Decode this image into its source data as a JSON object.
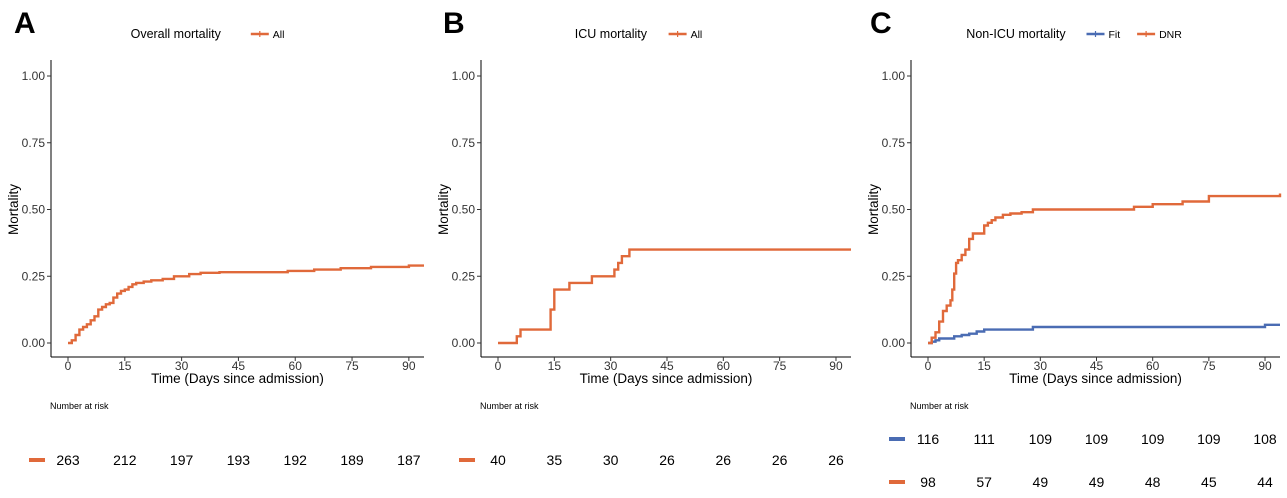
{
  "panels": [
    {
      "letter": "A",
      "legend_title": "Overall mortality",
      "xlabel": "Time (Days since admission)",
      "ylabel": "Mortality",
      "risk_title": "Number at risk",
      "series_names": [
        "All"
      ]
    },
    {
      "letter": "B",
      "legend_title": "ICU mortality",
      "xlabel": "Time (Days since admission)",
      "ylabel": "Mortality",
      "risk_title": "Number at risk",
      "series_names": [
        "All"
      ]
    },
    {
      "letter": "C",
      "legend_title": "Non-ICU mortality",
      "xlabel": "Time (Days since admission)",
      "ylabel": "Mortality",
      "risk_title": "Number at risk",
      "series_names": [
        "Fit",
        "DNR"
      ]
    }
  ],
  "chart_data": [
    {
      "type": "line",
      "step": true,
      "title": "",
      "xlabel": "Time (Days since admission)",
      "ylabel": "Mortality",
      "xlim": [
        0,
        94
      ],
      "ylim": [
        0,
        1
      ],
      "xticks": [
        "0",
        "15",
        "30",
        "45",
        "60",
        "75",
        "90"
      ],
      "yticks": [
        "0.00",
        "0.25",
        "0.50",
        "0.75",
        "1.00"
      ],
      "legend": {
        "title": "Overall mortality",
        "position": "top"
      },
      "grid": false,
      "series": [
        {
          "name": "All",
          "color": "#e0693a",
          "x": [
            0,
            1,
            2,
            3,
            4,
            5,
            6,
            7,
            8,
            9,
            10,
            11,
            12,
            13,
            14,
            15,
            16,
            17,
            18,
            20,
            22,
            25,
            28,
            32,
            35,
            40,
            50,
            58,
            65,
            72,
            80,
            90,
            94
          ],
          "y": [
            0,
            0.01,
            0.03,
            0.05,
            0.06,
            0.07,
            0.085,
            0.1,
            0.125,
            0.135,
            0.145,
            0.15,
            0.17,
            0.185,
            0.195,
            0.2,
            0.21,
            0.22,
            0.225,
            0.23,
            0.235,
            0.24,
            0.25,
            0.258,
            0.263,
            0.265,
            0.265,
            0.27,
            0.275,
            0.28,
            0.285,
            0.29,
            0.29
          ]
        }
      ],
      "risk_table": {
        "times": [
          0,
          15,
          30,
          45,
          60,
          75,
          90
        ],
        "rows": [
          {
            "name": "All",
            "color": "#e0693a",
            "values": [
              263,
              212,
              197,
              193,
              192,
              189,
              187
            ]
          }
        ]
      }
    },
    {
      "type": "line",
      "step": true,
      "title": "",
      "xlabel": "Time (Days since admission)",
      "ylabel": "Mortality",
      "xlim": [
        0,
        94
      ],
      "ylim": [
        0,
        1
      ],
      "xticks": [
        "0",
        "15",
        "30",
        "45",
        "60",
        "75",
        "90"
      ],
      "yticks": [
        "0.00",
        "0.25",
        "0.50",
        "0.75",
        "1.00"
      ],
      "legend": {
        "title": "ICU mortality",
        "position": "top"
      },
      "grid": false,
      "series": [
        {
          "name": "All",
          "color": "#e0693a",
          "x": [
            0,
            5,
            6,
            14,
            15,
            16,
            19,
            25,
            31,
            32,
            33,
            35,
            94
          ],
          "y": [
            0,
            0.025,
            0.05,
            0.125,
            0.2,
            0.2,
            0.225,
            0.25,
            0.275,
            0.3,
            0.325,
            0.35,
            0.35
          ]
        }
      ],
      "risk_table": {
        "times": [
          0,
          15,
          30,
          45,
          60,
          75,
          90
        ],
        "rows": [
          {
            "name": "All",
            "color": "#e0693a",
            "values": [
              40,
              35,
              30,
              26,
              26,
              26,
              26
            ]
          }
        ]
      }
    },
    {
      "type": "line",
      "step": true,
      "title": "",
      "xlabel": "Time (Days since admission)",
      "ylabel": "Mortality",
      "xlim": [
        0,
        94
      ],
      "ylim": [
        0,
        1
      ],
      "xticks": [
        "0",
        "15",
        "30",
        "45",
        "60",
        "75",
        "90"
      ],
      "yticks": [
        "0.00",
        "0.25",
        "0.50",
        "0.75",
        "1.00"
      ],
      "legend": {
        "title": "Non-ICU mortality",
        "position": "top"
      },
      "grid": false,
      "series": [
        {
          "name": "Fit",
          "color": "#4a6cb3",
          "x": [
            0,
            1,
            2,
            3,
            7,
            9,
            11,
            13,
            15,
            28,
            90,
            94
          ],
          "y": [
            0,
            0.005,
            0.01,
            0.017,
            0.025,
            0.03,
            0.035,
            0.043,
            0.05,
            0.06,
            0.068,
            0.068
          ]
        },
        {
          "name": "DNR",
          "color": "#e0693a",
          "x": [
            0,
            1,
            2,
            3,
            4,
            5,
            6,
            6.5,
            7,
            7.5,
            8,
            9,
            10,
            11,
            12,
            15,
            16,
            17,
            18,
            20,
            22,
            25,
            28,
            55,
            60,
            68,
            75,
            94
          ],
          "y": [
            0,
            0.02,
            0.04,
            0.08,
            0.12,
            0.14,
            0.16,
            0.2,
            0.26,
            0.3,
            0.31,
            0.33,
            0.35,
            0.39,
            0.41,
            0.44,
            0.45,
            0.46,
            0.47,
            0.48,
            0.485,
            0.49,
            0.5,
            0.51,
            0.52,
            0.53,
            0.55,
            0.56
          ]
        }
      ],
      "risk_table": {
        "times": [
          0,
          15,
          30,
          45,
          60,
          75,
          90
        ],
        "rows": [
          {
            "name": "Fit",
            "color": "#4a6cb3",
            "values": [
              116,
              111,
              109,
              109,
              109,
              109,
              108
            ]
          },
          {
            "name": "DNR",
            "color": "#e0693a",
            "values": [
              98,
              57,
              49,
              49,
              48,
              45,
              44
            ]
          }
        ]
      }
    }
  ]
}
